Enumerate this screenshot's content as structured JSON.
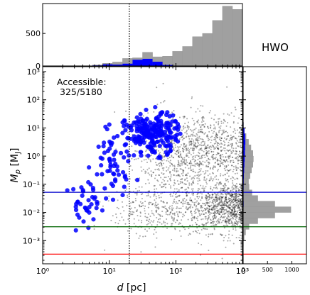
{
  "chart_data": [
    {
      "panel": "top-histogram",
      "type": "bar",
      "xscale": "log",
      "xlim": [
        1,
        1000
      ],
      "ylim": [
        0,
        960
      ],
      "ytick_labels": [
        "0",
        "500"
      ],
      "bin_edges_log10": [
        0.0,
        0.15,
        0.3,
        0.45,
        0.6,
        0.75,
        0.9,
        1.05,
        1.2,
        1.35,
        1.5,
        1.65,
        1.8,
        1.95,
        2.1,
        2.25,
        2.4,
        2.55,
        2.7,
        2.85,
        3.0,
        3.15,
        3.3,
        3.45,
        3.6,
        3.75,
        3.9
      ],
      "series": [
        {
          "color": "#a0a0a0",
          "values": [
            0,
            0,
            0,
            0,
            2,
            15,
            40,
            60,
            115,
            125,
            210,
            140,
            150,
            225,
            300,
            450,
            500,
            700,
            920,
            870,
            600,
            280,
            40,
            20,
            15,
            70
          ]
        },
        {
          "color": "#0000ff",
          "values": [
            0,
            0,
            0,
            0,
            0,
            8,
            25,
            20,
            35,
            95,
            110,
            65,
            15,
            2,
            0,
            0,
            0,
            0,
            0,
            0,
            0,
            0,
            0,
            0,
            0,
            0
          ]
        }
      ]
    },
    {
      "panel": "scatter",
      "type": "scatter",
      "xscale": "log",
      "yscale": "log",
      "xlim": [
        1,
        1000
      ],
      "ylim": [
        0.00015,
        1500
      ],
      "xlabel": "d [pc]",
      "ylabel": "Mp [MJ]",
      "xtick_labels": [
        "10⁰",
        "10¹",
        "10²",
        "10³"
      ],
      "ytick_labels": [
        "10³",
        "10²",
        "10¹",
        "10⁰",
        "10⁻¹",
        "10⁻²",
        "10⁻³"
      ],
      "xtick_values": [
        1,
        10,
        100,
        1000
      ],
      "ytick_values": [
        1000,
        100,
        10,
        1,
        0.1,
        0.01,
        0.001
      ],
      "annotation": [
        "Accessible:",
        "325/5180"
      ],
      "vline": {
        "x": 20,
        "style": "dotted",
        "color": "#000000"
      },
      "hlines": [
        {
          "y": 0.052,
          "color": "#0000cc"
        },
        {
          "y": 0.0031,
          "color": "#006400"
        },
        {
          "y": 0.00033,
          "color": "#ff0000"
        }
      ],
      "series": [
        {
          "name": "",
          "color": "#000000",
          "marker": "small dot",
          "clusters": [
            {
              "d_center": 900,
              "d_spread_dex": 0.45,
              "m_center": 0.015,
              "m_spread_dex": 0.45,
              "n": 1800
            },
            {
              "d_center": 400,
              "d_spread_dex": 0.45,
              "m_center": 2.0,
              "m_spread_dex": 0.6,
              "n": 900
            },
            {
              "d_center": 90,
              "d_spread_dex": 0.35,
              "m_center": 0.4,
              "m_spread_dex": 0.9,
              "n": 500
            },
            {
              "d_center": 40,
              "d_spread_dex": 0.3,
              "m_center": 0.01,
              "m_spread_dex": 0.5,
              "n": 200
            }
          ]
        },
        {
          "name": "",
          "color": "#0000ff",
          "marker": "circle",
          "clusters": [
            {
              "d_center": 45,
              "d_spread_dex": 0.2,
              "m_center": 6,
              "m_spread_dex": 0.35,
              "n": 230
            },
            {
              "d_center": 12,
              "d_spread_dex": 0.15,
              "m_center": 1.0,
              "m_spread_dex": 0.6,
              "n": 55
            },
            {
              "d_center": 5,
              "d_spread_dex": 0.15,
              "m_center": 0.02,
              "m_spread_dex": 0.4,
              "n": 40
            }
          ]
        }
      ]
    },
    {
      "panel": "right-histogram",
      "type": "bar",
      "orientation": "horizontal",
      "yscale": "log",
      "xlim": [
        0,
        1300
      ],
      "xtick_labels": [
        "0",
        "500",
        "1000"
      ],
      "xtick_values": [
        0,
        500,
        1000
      ],
      "bin_edges_log10": [
        -3.6,
        -3.4,
        -3.2,
        -3.0,
        -2.8,
        -2.6,
        -2.4,
        -2.2,
        -2.0,
        -1.8,
        -1.6,
        -1.4,
        -1.2,
        -1.0,
        -0.8,
        -0.6,
        -0.4,
        -0.2,
        0.0,
        0.2,
        0.4,
        0.6,
        0.8,
        1.0,
        1.2,
        1.4
      ],
      "series": [
        {
          "color": "#a0a0a0",
          "values": [
            0,
            0,
            5,
            20,
            50,
            120,
            300,
            650,
            980,
            650,
            300,
            180,
            120,
            110,
            140,
            170,
            200,
            210,
            200,
            160,
            110,
            60,
            25,
            8,
            2
          ]
        },
        {
          "color": "#0000ff",
          "values": [
            0,
            0,
            0,
            0,
            0,
            0,
            0,
            0,
            5,
            10,
            8,
            8,
            10,
            12,
            15,
            20,
            25,
            30,
            35,
            40,
            45,
            40,
            25,
            8,
            2
          ]
        }
      ]
    }
  ],
  "title": "HWO"
}
